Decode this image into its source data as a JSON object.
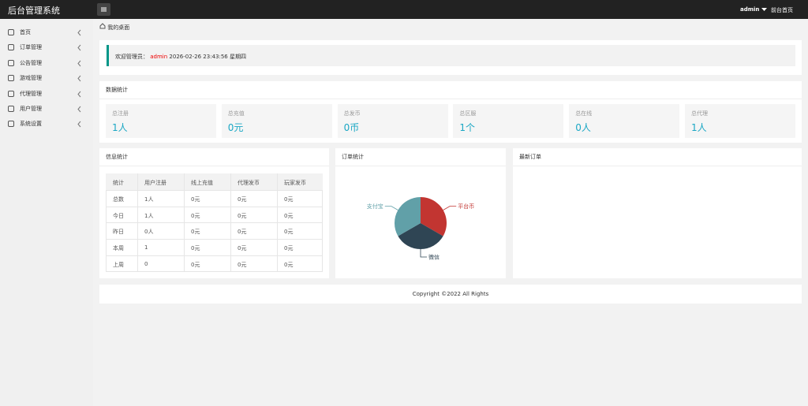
{
  "header": {
    "title": "后台管理系统",
    "user": "admin",
    "home_link": "前台首页"
  },
  "sidebar": {
    "items": [
      "首页",
      "订单管理",
      "公告管理",
      "游戏管理",
      "代理管理",
      "用户管理",
      "系统设置"
    ]
  },
  "breadcrumb": "我的桌面",
  "welcome": {
    "prefix": "欢迎管理员：",
    "user": "admin",
    "time": "2026-02-26  23:43:56  星期四"
  },
  "stats": {
    "title": "数据统计",
    "items": [
      {
        "label": "总注册",
        "value": "1人"
      },
      {
        "label": "总充值",
        "value": "0元"
      },
      {
        "label": "总发币",
        "value": "0币"
      },
      {
        "label": "总区服",
        "value": "1个"
      },
      {
        "label": "总在线",
        "value": "0人"
      },
      {
        "label": "总代理",
        "value": "1人"
      }
    ]
  },
  "info": {
    "title": "信息统计",
    "headers": [
      "统计",
      "用户注册",
      "线上充值",
      "代理发币",
      "玩家发币"
    ],
    "rows": [
      [
        "总数",
        "1人",
        "0元",
        "0元",
        "0元"
      ],
      [
        "今日",
        "1人",
        "0元",
        "0元",
        "0元"
      ],
      [
        "昨日",
        "0人",
        "0元",
        "0元",
        "0元"
      ],
      [
        "本周",
        "1",
        "0元",
        "0元",
        "0元"
      ],
      [
        "上周",
        "0",
        "0元",
        "0元",
        "0元"
      ]
    ]
  },
  "chart_data": {
    "type": "pie",
    "title": "订单统计",
    "categories": [
      "平台币",
      "微信",
      "支付宝"
    ],
    "values": [
      33.3,
      33.3,
      33.3
    ],
    "colors": [
      "#c23531",
      "#2f4554",
      "#61a0a8"
    ]
  },
  "latest_orders": {
    "title": "最新订单"
  },
  "footer": "Copyright ©2022 All Rights"
}
